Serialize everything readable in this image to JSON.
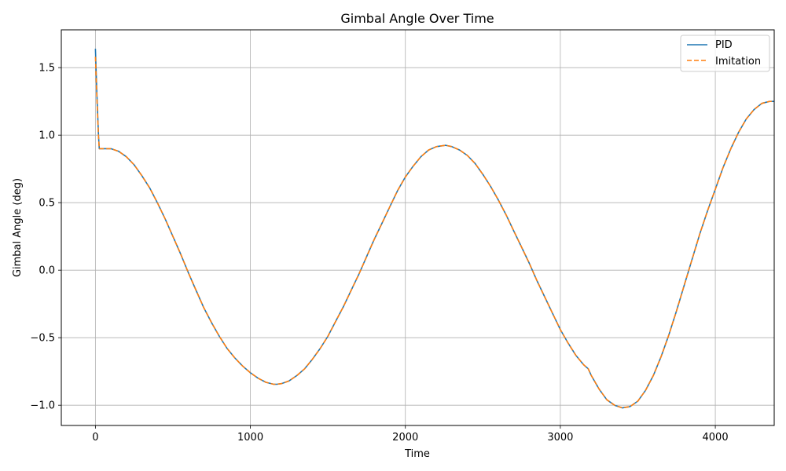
{
  "chart_data": {
    "type": "line",
    "title": "Gimbal Angle Over Time",
    "xlabel": "Time",
    "ylabel": "Gimbal Angle (deg)",
    "xlim": [
      -220,
      4380
    ],
    "ylim": [
      -1.15,
      1.78
    ],
    "grid": true,
    "legend_position": "top-right",
    "x_ticks": [
      {
        "value": 0,
        "label": "0"
      },
      {
        "value": 1000,
        "label": "1000"
      },
      {
        "value": 2000,
        "label": "2000"
      },
      {
        "value": 3000,
        "label": "3000"
      },
      {
        "value": 4000,
        "label": "4000"
      }
    ],
    "y_ticks": [
      {
        "value": -1.0,
        "label": "−1.0"
      },
      {
        "value": -0.5,
        "label": "−0.5"
      },
      {
        "value": 0.0,
        "label": "0.0"
      },
      {
        "value": 0.5,
        "label": "0.5"
      },
      {
        "value": 1.0,
        "label": "1.0"
      },
      {
        "value": 1.5,
        "label": "1.5"
      }
    ],
    "series": [
      {
        "name": "PID",
        "color": "#1f77b4",
        "style": "solid",
        "x": [
          0,
          10,
          20,
          25,
          60,
          100,
          150,
          200,
          250,
          300,
          350,
          400,
          450,
          500,
          550,
          600,
          650,
          700,
          750,
          800,
          850,
          900,
          950,
          1000,
          1050,
          1100,
          1150,
          1170,
          1200,
          1250,
          1300,
          1350,
          1400,
          1450,
          1500,
          1550,
          1600,
          1650,
          1700,
          1750,
          1800,
          1850,
          1900,
          1950,
          2000,
          2050,
          2100,
          2150,
          2200,
          2260,
          2300,
          2350,
          2400,
          2450,
          2500,
          2550,
          2600,
          2650,
          2700,
          2750,
          2800,
          2850,
          2900,
          2950,
          3000,
          3050,
          3100,
          3150,
          3180,
          3200,
          3250,
          3300,
          3350,
          3400,
          3450,
          3500,
          3550,
          3600,
          3650,
          3700,
          3750,
          3800,
          3850,
          3900,
          3950,
          4000,
          4050,
          4100,
          4150,
          4200,
          4250,
          4300,
          4350,
          4380
        ],
        "y": [
          1.64,
          1.3,
          1.0,
          0.9,
          0.9,
          0.9,
          0.88,
          0.84,
          0.78,
          0.7,
          0.61,
          0.5,
          0.38,
          0.25,
          0.12,
          -0.02,
          -0.15,
          -0.28,
          -0.39,
          -0.49,
          -0.58,
          -0.65,
          -0.71,
          -0.76,
          -0.8,
          -0.83,
          -0.845,
          -0.845,
          -0.84,
          -0.82,
          -0.78,
          -0.73,
          -0.66,
          -0.58,
          -0.49,
          -0.38,
          -0.27,
          -0.15,
          -0.03,
          0.1,
          0.23,
          0.35,
          0.47,
          0.59,
          0.69,
          0.77,
          0.84,
          0.89,
          0.915,
          0.925,
          0.915,
          0.89,
          0.85,
          0.79,
          0.71,
          0.62,
          0.52,
          0.41,
          0.29,
          0.17,
          0.05,
          -0.08,
          -0.2,
          -0.32,
          -0.44,
          -0.54,
          -0.63,
          -0.7,
          -0.73,
          -0.78,
          -0.88,
          -0.96,
          -1.0,
          -1.02,
          -1.01,
          -0.97,
          -0.89,
          -0.78,
          -0.64,
          -0.48,
          -0.3,
          -0.11,
          0.08,
          0.27,
          0.44,
          0.6,
          0.76,
          0.9,
          1.02,
          1.12,
          1.19,
          1.235,
          1.25,
          1.25
        ]
      },
      {
        "name": "Imitation",
        "color": "#ff7f0e",
        "style": "dashed",
        "x": [
          0,
          10,
          20,
          25,
          60,
          100,
          150,
          200,
          250,
          300,
          350,
          400,
          450,
          500,
          550,
          600,
          650,
          700,
          750,
          800,
          850,
          900,
          950,
          1000,
          1050,
          1100,
          1150,
          1170,
          1200,
          1250,
          1300,
          1350,
          1400,
          1450,
          1500,
          1550,
          1600,
          1650,
          1700,
          1750,
          1800,
          1850,
          1900,
          1950,
          2000,
          2050,
          2100,
          2150,
          2200,
          2260,
          2300,
          2350,
          2400,
          2450,
          2500,
          2550,
          2600,
          2650,
          2700,
          2750,
          2800,
          2850,
          2900,
          2950,
          3000,
          3050,
          3100,
          3150,
          3180,
          3200,
          3250,
          3300,
          3350,
          3400,
          3450,
          3500,
          3550,
          3600,
          3650,
          3700,
          3750,
          3800,
          3850,
          3900,
          3950,
          4000,
          4050,
          4100,
          4150,
          4200,
          4250,
          4300,
          4350,
          4380
        ],
        "y": [
          1.58,
          1.27,
          0.99,
          0.9,
          0.9,
          0.9,
          0.88,
          0.84,
          0.78,
          0.7,
          0.61,
          0.5,
          0.38,
          0.25,
          0.12,
          -0.02,
          -0.15,
          -0.28,
          -0.39,
          -0.49,
          -0.58,
          -0.65,
          -0.71,
          -0.76,
          -0.8,
          -0.83,
          -0.845,
          -0.845,
          -0.84,
          -0.82,
          -0.78,
          -0.73,
          -0.66,
          -0.58,
          -0.49,
          -0.38,
          -0.27,
          -0.15,
          -0.03,
          0.1,
          0.23,
          0.35,
          0.47,
          0.59,
          0.69,
          0.77,
          0.84,
          0.89,
          0.915,
          0.925,
          0.915,
          0.89,
          0.85,
          0.79,
          0.71,
          0.62,
          0.52,
          0.41,
          0.29,
          0.17,
          0.05,
          -0.08,
          -0.2,
          -0.32,
          -0.44,
          -0.54,
          -0.63,
          -0.7,
          -0.73,
          -0.78,
          -0.88,
          -0.96,
          -1.0,
          -1.02,
          -1.01,
          -0.97,
          -0.89,
          -0.78,
          -0.64,
          -0.48,
          -0.3,
          -0.11,
          0.08,
          0.27,
          0.44,
          0.6,
          0.76,
          0.9,
          1.02,
          1.12,
          1.19,
          1.235,
          1.25,
          1.25
        ]
      }
    ]
  }
}
